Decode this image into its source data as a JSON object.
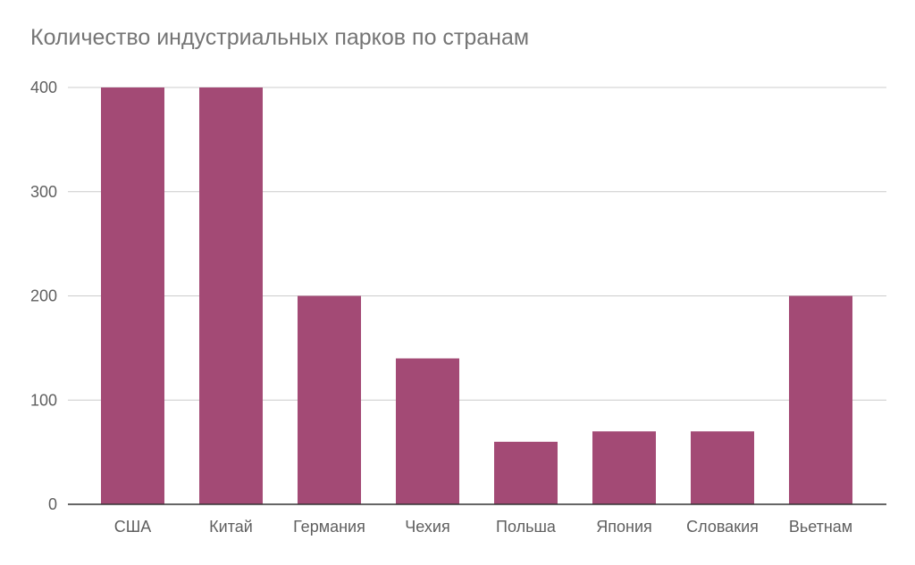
{
  "chart_data": {
    "type": "bar",
    "title": "Количество индустриальных парков по странам",
    "categories": [
      "США",
      "Китай",
      "Германия",
      "Чехия",
      "Польша",
      "Япония",
      "Словакия",
      "Вьетнам"
    ],
    "values": [
      400,
      400,
      200,
      140,
      60,
      70,
      70,
      200
    ],
    "yticks": [
      "0",
      "100",
      "200",
      "300",
      "400"
    ],
    "ylim": [
      0,
      400
    ],
    "xlabel": "",
    "ylabel": "",
    "grid": true,
    "legend": "none",
    "bar_color": "#a34a75",
    "grid_color": "#cccccc",
    "axis_color": "#333333"
  }
}
